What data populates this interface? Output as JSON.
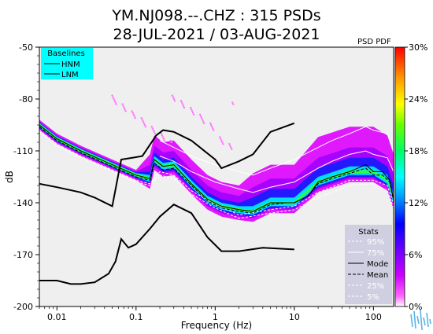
{
  "chart_data": {
    "type": "heatmap",
    "title": "YM.NJ098.--.CHZ : 315 PSDs",
    "subtitle": "28-JUL-2021 / 03-AUG-2021",
    "xlabel": "Frequency (Hz)",
    "ylabel": "dB",
    "x_scale": "log",
    "xlim": [
      0.006,
      180
    ],
    "ylim": [
      -200,
      -50
    ],
    "x_ticks": [
      {
        "value": 0.01,
        "label": "0.01"
      },
      {
        "value": 0.1,
        "label": "0.1"
      },
      {
        "value": 1,
        "label": "1"
      },
      {
        "value": 10,
        "label": "10"
      },
      {
        "value": 100,
        "label": "100"
      }
    ],
    "y_ticks": [
      {
        "value": -50,
        "label": "-50"
      },
      {
        "value": -80,
        "label": "-80"
      },
      {
        "value": -110,
        "label": "-110"
      },
      {
        "value": -140,
        "label": "-140"
      },
      {
        "value": -170,
        "label": "-170"
      },
      {
        "value": -200,
        "label": "-200"
      }
    ],
    "colorbar": {
      "label": "PSD PDF",
      "ticks": [
        {
          "value": 0,
          "label": "0%"
        },
        {
          "value": 6,
          "label": "6%"
        },
        {
          "value": 12,
          "label": "12%"
        },
        {
          "value": 18,
          "label": "18%"
        },
        {
          "value": 24,
          "label": "24%"
        },
        {
          "value": 30,
          "label": "30%"
        }
      ],
      "range": [
        0,
        30
      ],
      "colors": [
        "#ffffff",
        "#e600ff",
        "#7f00ff",
        "#0000ff",
        "#00ffff",
        "#00ff00",
        "#ffff00",
        "#ff8000",
        "#ff0000"
      ]
    },
    "baselines_legend": {
      "title": "Baselines",
      "entries": [
        "HNM",
        "LNM"
      ]
    },
    "stats_legend": {
      "title": "Stats",
      "entries": [
        "95%",
        "75%",
        "Mode",
        "Mean",
        "25%",
        "5%"
      ]
    },
    "nhnm": {
      "name": "HNM",
      "x": [
        0.006,
        0.01,
        0.02,
        0.03,
        0.05,
        0.065,
        0.09,
        0.12,
        0.18,
        0.22,
        0.3,
        0.5,
        1,
        1.2,
        2,
        3,
        5,
        10
      ],
      "y": [
        -129,
        -131,
        -134,
        -137,
        -142,
        -115,
        -114,
        -113,
        -101,
        -98,
        -99,
        -104,
        -115,
        -120,
        -116,
        -112,
        -99,
        -94
      ]
    },
    "nlnm": {
      "name": "LNM",
      "x": [
        0.006,
        0.01,
        0.015,
        0.02,
        0.03,
        0.045,
        0.055,
        0.065,
        0.08,
        0.1,
        0.15,
        0.2,
        0.3,
        0.5,
        0.8,
        1.2,
        2,
        4,
        10
      ],
      "y": [
        -185,
        -185,
        -187,
        -187,
        -186,
        -181,
        -174,
        -161,
        -166,
        -164,
        -155,
        -148,
        -141,
        -146,
        -160,
        -168,
        -168,
        -166,
        -167
      ]
    },
    "mode": {
      "x": [
        0.006,
        0.01,
        0.02,
        0.05,
        0.1,
        0.15,
        0.17,
        0.22,
        0.3,
        0.5,
        0.8,
        1.2,
        2,
        3,
        5,
        8,
        10,
        15,
        20,
        30,
        50,
        80,
        100,
        130,
        160,
        180
      ],
      "y": [
        -95,
        -103,
        -110,
        -118,
        -124,
        -126,
        -115,
        -119,
        -118,
        -129,
        -138,
        -142,
        -144,
        -145,
        -140,
        -140,
        -140,
        -136,
        -128,
        -125,
        -122,
        -118,
        -122,
        -122,
        -127,
        -138
      ]
    },
    "mean": {
      "x": [
        0.006,
        0.01,
        0.02,
        0.05,
        0.1,
        0.15,
        0.17,
        0.22,
        0.3,
        0.5,
        0.8,
        1.2,
        2,
        3,
        5,
        8,
        10,
        15,
        20,
        30,
        50,
        80,
        100,
        130,
        160,
        180
      ],
      "y": [
        -96,
        -104,
        -111,
        -119,
        -125,
        -127,
        -117,
        -121,
        -120,
        -130,
        -139,
        -143,
        -145,
        -146,
        -141,
        -140,
        -140,
        -136,
        -129,
        -126,
        -123,
        -120,
        -124,
        -124,
        -128,
        -139
      ]
    },
    "p95": {
      "x": [
        0.2,
        0.3,
        0.5,
        1,
        2,
        3,
        5,
        10,
        20,
        30,
        50,
        80,
        100,
        150,
        180
      ],
      "y": [
        -104,
        -108,
        -113,
        -118,
        -122,
        -124,
        -120,
        -115,
        -108,
        -104,
        -100,
        -96,
        -98,
        -100,
        -110
      ]
    },
    "p75": {
      "x": [
        0.2,
        0.3,
        0.5,
        1,
        2,
        3,
        5,
        10,
        20,
        30,
        50,
        80,
        100,
        150,
        180
      ],
      "y": [
        -113,
        -116,
        -122,
        -128,
        -132,
        -134,
        -131,
        -128,
        -120,
        -116,
        -112,
        -110,
        -112,
        -114,
        -122
      ]
    },
    "p25": {
      "x": [
        0.006,
        0.01,
        0.02,
        0.05,
        0.1,
        0.15,
        0.2,
        0.3,
        0.5,
        1,
        2,
        5,
        10,
        20,
        50,
        100,
        150,
        180
      ],
      "y": [
        -98,
        -106,
        -113,
        -121,
        -127,
        -129,
        -122,
        -124,
        -133,
        -141,
        -147,
        -144,
        -142,
        -134,
        -127,
        -127,
        -130,
        -141
      ]
    },
    "p5": {
      "x": [
        0.006,
        0.01,
        0.02,
        0.05,
        0.1,
        0.15,
        0.2,
        0.3,
        0.5,
        1,
        2,
        5,
        10,
        20,
        50,
        100,
        150,
        180
      ],
      "y": [
        -99,
        -107,
        -114,
        -122,
        -128,
        -130,
        -124,
        -126,
        -135,
        -143,
        -149,
        -146,
        -144,
        -137,
        -130,
        -129,
        -133,
        -143
      ]
    },
    "density_core": {
      "x": [
        0.006,
        0.01,
        0.02,
        0.05,
        0.1,
        0.15,
        0.17,
        0.22,
        0.3,
        0.5,
        0.8,
        1.2,
        2,
        3,
        5,
        10,
        20,
        50,
        100,
        150,
        180
      ],
      "y": [
        -95,
        -103,
        -110,
        -118,
        -124,
        -126,
        -115,
        -119,
        -118,
        -129,
        -138,
        -142,
        -144,
        -145,
        -140,
        -140,
        -128,
        -122,
        -122,
        -127,
        -138
      ]
    }
  }
}
